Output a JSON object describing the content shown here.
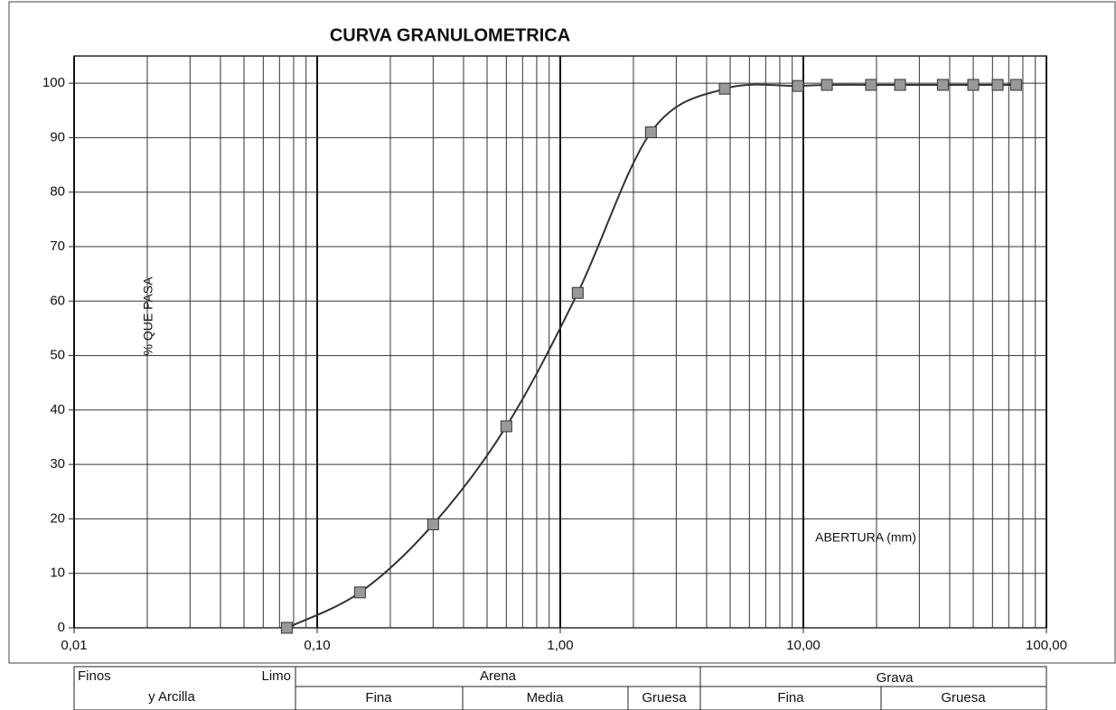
{
  "chart_data": {
    "type": "line",
    "title": "CURVA GRANULOMETRICA",
    "y_label": "% QUE PASA",
    "x_label": "ABERTURA (mm)",
    "log_x": true,
    "grid": true,
    "x": [
      0.075,
      0.15,
      0.3,
      0.6,
      1.18,
      2.36,
      4.75,
      9.5,
      12.5,
      19,
      25,
      37.5,
      50,
      63,
      75
    ],
    "series": [
      {
        "color": "#333333",
        "marker_color": "#999999",
        "values": [
          0,
          6.5,
          19,
          37,
          61.5,
          91,
          99,
          99.5,
          99.7,
          99.7,
          99.7,
          99.7,
          99.7,
          99.7,
          99.7
        ]
      }
    ],
    "xlim": [
      0.01,
      100
    ],
    "xticks": [
      {
        "value": 0.01,
        "label": "0,01"
      },
      {
        "value": 0.1,
        "label": "0,10"
      },
      {
        "value": 1,
        "label": "1,00"
      },
      {
        "value": 10,
        "label": "10,00"
      },
      {
        "value": 100,
        "label": "100,00"
      }
    ],
    "xticks_minor": [
      0.02,
      0.03,
      0.04,
      0.05,
      0.06,
      0.07,
      0.08,
      0.09,
      0.2,
      0.3,
      0.4,
      0.5,
      0.6,
      0.7,
      0.8,
      0.9,
      2,
      3,
      4,
      5,
      6,
      7,
      8,
      9,
      20,
      30,
      40,
      50,
      60,
      70,
      80,
      90
    ],
    "ylim": [
      0,
      105
    ],
    "yticks": [
      0,
      10,
      20,
      30,
      40,
      50,
      60,
      70,
      80,
      90,
      100
    ]
  },
  "soil_table": {
    "finos": "Finos",
    "limo": "Limo",
    "arcilla": "y Arcilla",
    "arena": "Arena",
    "arena_fina": "Fina",
    "arena_media": "Media",
    "arena_gruesa": "Gruesa",
    "grava": "Grava",
    "grava_fina": "Fina",
    "grava_gruesa": "Gruesa"
  }
}
